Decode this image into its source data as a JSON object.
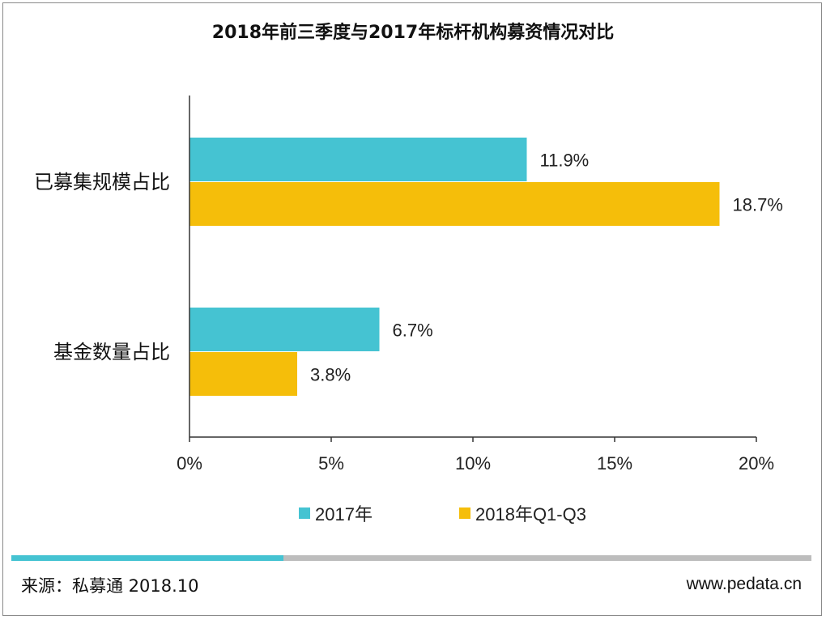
{
  "colors": {
    "series_2017": "#45c3d2",
    "series_2018": "#f5be0a",
    "axis": "#333333",
    "progress_fill": "#45c3d2",
    "progress_track": "#bdbdbd"
  },
  "footer": {
    "source": "来源：私募通 2018.10",
    "website": "www.pedata.cn",
    "progress": 0.34
  },
  "chart_data": {
    "type": "bar",
    "orientation": "horizontal",
    "title": "2018年前三季度与2017年标杆机构募资情况对比",
    "categories": [
      "已募集规模占比",
      "基金数量占比"
    ],
    "series": [
      {
        "name": "2017年",
        "values": [
          11.9,
          6.7
        ],
        "labels": [
          "11.9%",
          "6.7%"
        ]
      },
      {
        "name": "2018年Q1-Q3",
        "values": [
          18.7,
          3.8
        ],
        "labels": [
          "18.7%",
          "3.8%"
        ]
      }
    ],
    "xlim": [
      0,
      20
    ],
    "xticks": [
      0,
      5,
      10,
      15,
      20
    ],
    "xtick_labels": [
      "0%",
      "5%",
      "10%",
      "15%",
      "20%"
    ],
    "grid": false,
    "legend_position": "bottom"
  }
}
